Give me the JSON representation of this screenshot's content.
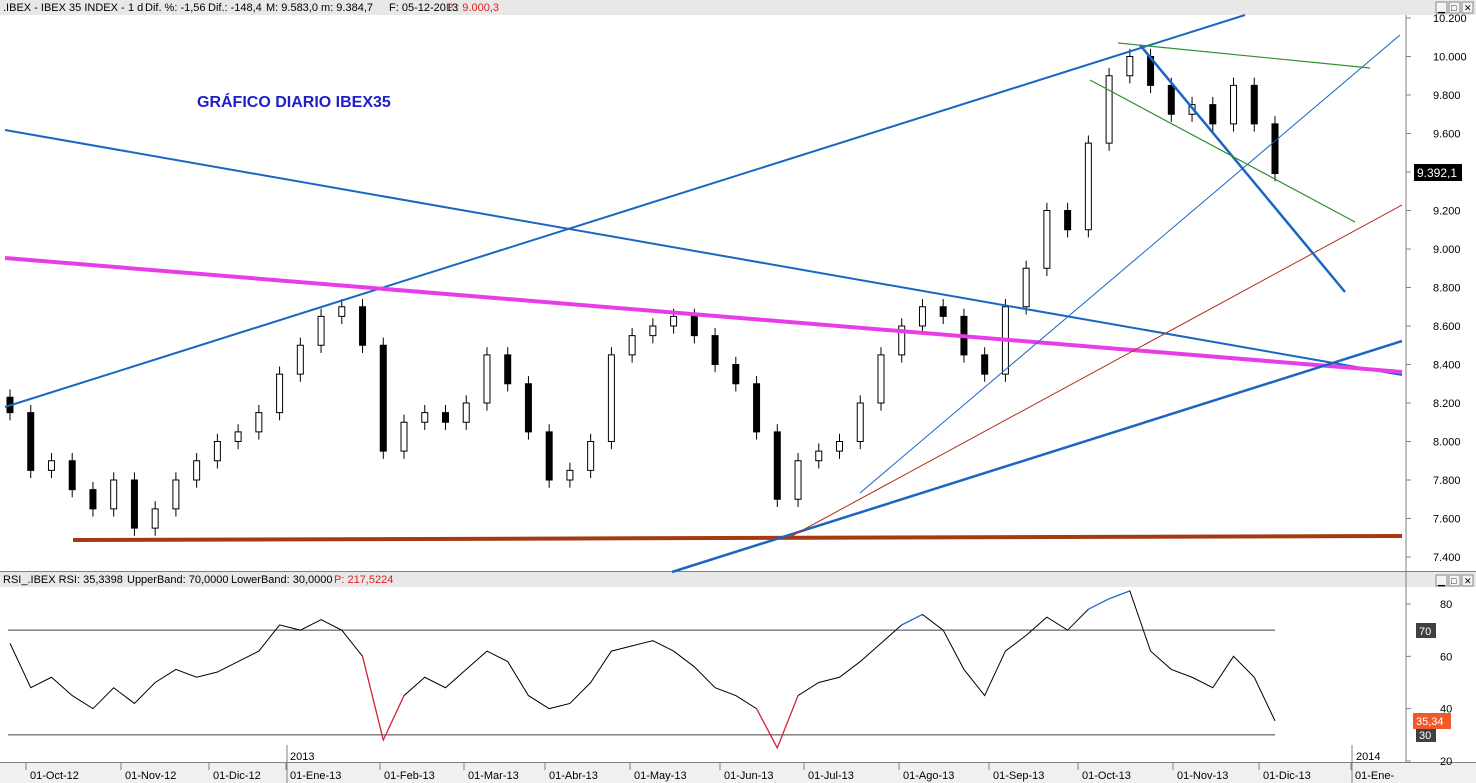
{
  "price_panel": {
    "header": {
      "symbol": ".IBEX - IBEX 35 INDEX -",
      "timeframe": "1 d",
      "change_pct": "Dif. %: -1,56",
      "change_abs": "Dif.: -148,4",
      "high_low": "M: 9.583,0  m: 9.384,7",
      "date": "F: 05-12-2013",
      "cursor_price": "P : 9.000,3"
    },
    "annotation": "GRÁFICO DIARIO IBEX35",
    "last_price_label": "9.392,1",
    "y_ticks": [
      "7.400",
      "7.600",
      "7.800",
      "8.000",
      "8.200",
      "8.400",
      "8.600",
      "8.800",
      "9.000",
      "9.200",
      "9.400",
      "9.600",
      "9.800",
      "10.000",
      "10.200"
    ],
    "y_tick_values": [
      7400,
      7600,
      7800,
      8000,
      8200,
      8400,
      8600,
      8800,
      9000,
      9200,
      9400,
      9600,
      9800,
      10000,
      10200
    ]
  },
  "rsi_panel": {
    "header": {
      "name": "RSI_.IBEX RSI: 35,3398",
      "upper": "UpperBand: 70,0000",
      "lower": "LowerBand: 30,0000",
      "cursor_price": "P: 217,5224"
    },
    "y_ticks": [
      "20",
      "40",
      "60",
      "80"
    ],
    "y_tick_values": [
      20,
      40,
      60,
      80
    ],
    "upper_band_label": "70",
    "lower_band_label": "30",
    "current_value_label": "35,34"
  },
  "x_axis": {
    "labels": [
      "01-Oct-12",
      "01-Nov-12",
      "01-Dic-12",
      "01-Ene-13",
      "01-Feb-13",
      "01-Mar-13",
      "01-Abr-13",
      "01-May-13",
      "01-Jun-13",
      "01-Jul-13",
      "01-Ago-13",
      "01-Sep-13",
      "01-Oct-13",
      "01-Nov-13",
      "01-Dic-13",
      "01-Ene-"
    ],
    "year_labels": [
      "2013",
      "2014"
    ]
  },
  "colors": {
    "trendline_blue": "#1a66c2",
    "resistance_magenta": "#e83ce8",
    "support_brown": "#a53a10",
    "channel_green": "#2f8f2f",
    "thin_red": "#b03020",
    "rsi_line": "#000000",
    "rsi_overbought": "#1f6fd6",
    "rsi_oversold": "#e0203a",
    "last_price_bg": "#000000",
    "rsi_value_bg": "#ee5a2a"
  },
  "chart_data": [
    {
      "type": "candlestick",
      "title": "GRÁFICO DIARIO IBEX35",
      "ylim": [
        7400,
        10200
      ],
      "x": [
        "2012-10-01",
        "2012-10-08",
        "2012-10-15",
        "2012-10-22",
        "2012-10-29",
        "2012-11-05",
        "2012-11-12",
        "2012-11-19",
        "2012-11-26",
        "2012-12-03",
        "2012-12-10",
        "2012-12-17",
        "2012-12-24",
        "2012-12-31",
        "2013-01-07",
        "2013-01-14",
        "2013-01-21",
        "2013-01-28",
        "2013-02-04",
        "2013-02-11",
        "2013-02-18",
        "2013-02-25",
        "2013-03-04",
        "2013-03-11",
        "2013-03-18",
        "2013-03-25",
        "2013-04-01",
        "2013-04-08",
        "2013-04-15",
        "2013-04-22",
        "2013-04-29",
        "2013-05-06",
        "2013-05-13",
        "2013-05-20",
        "2013-05-27",
        "2013-06-03",
        "2013-06-10",
        "2013-06-17",
        "2013-06-24",
        "2013-07-01",
        "2013-07-08",
        "2013-07-15",
        "2013-07-22",
        "2013-07-29",
        "2013-08-05",
        "2013-08-12",
        "2013-08-19",
        "2013-08-26",
        "2013-09-02",
        "2013-09-09",
        "2013-09-16",
        "2013-09-23",
        "2013-09-30",
        "2013-10-07",
        "2013-10-14",
        "2013-10-21",
        "2013-10-28",
        "2013-11-04",
        "2013-11-11",
        "2013-11-18",
        "2013-11-25",
        "2013-12-02"
      ],
      "close": [
        8150,
        7850,
        7900,
        7750,
        7650,
        7800,
        7550,
        7650,
        7800,
        7900,
        8000,
        8050,
        8150,
        8350,
        8500,
        8650,
        8700,
        8500,
        7950,
        8100,
        8150,
        8100,
        8200,
        8450,
        8300,
        8050,
        7800,
        7850,
        8000,
        8450,
        8550,
        8600,
        8650,
        8550,
        8400,
        8300,
        8050,
        7700,
        7900,
        7950,
        8000,
        8200,
        8450,
        8600,
        8700,
        8650,
        8450,
        8350,
        8700,
        8900,
        9200,
        9100,
        9550,
        9900,
        10000,
        9850,
        9700,
        9750,
        9650,
        9850,
        9650,
        9392
      ]
    },
    {
      "type": "line",
      "title": "RSI_.IBEX RSI",
      "ylim": [
        15,
        90
      ],
      "bands": {
        "upper": 70,
        "lower": 30
      },
      "x": [
        "2012-10-01",
        "2012-10-08",
        "2012-10-15",
        "2012-10-22",
        "2012-10-29",
        "2012-11-05",
        "2012-11-12",
        "2012-11-19",
        "2012-11-26",
        "2012-12-03",
        "2012-12-10",
        "2012-12-17",
        "2012-12-24",
        "2012-12-31",
        "2013-01-07",
        "2013-01-14",
        "2013-01-21",
        "2013-01-28",
        "2013-02-04",
        "2013-02-11",
        "2013-02-18",
        "2013-02-25",
        "2013-03-04",
        "2013-03-11",
        "2013-03-18",
        "2013-03-25",
        "2013-04-01",
        "2013-04-08",
        "2013-04-15",
        "2013-04-22",
        "2013-04-29",
        "2013-05-06",
        "2013-05-13",
        "2013-05-20",
        "2013-05-27",
        "2013-06-03",
        "2013-06-10",
        "2013-06-17",
        "2013-06-24",
        "2013-07-01",
        "2013-07-08",
        "2013-07-15",
        "2013-07-22",
        "2013-07-29",
        "2013-08-05",
        "2013-08-12",
        "2013-08-19",
        "2013-08-26",
        "2013-09-02",
        "2013-09-09",
        "2013-09-16",
        "2013-09-23",
        "2013-09-30",
        "2013-10-07",
        "2013-10-14",
        "2013-10-21",
        "2013-10-28",
        "2013-11-04",
        "2013-11-11",
        "2013-11-18",
        "2013-11-25",
        "2013-12-02"
      ],
      "values": [
        65,
        48,
        52,
        45,
        40,
        48,
        42,
        50,
        55,
        52,
        54,
        58,
        62,
        72,
        70,
        74,
        70,
        60,
        28,
        45,
        52,
        48,
        55,
        62,
        58,
        45,
        40,
        42,
        50,
        62,
        64,
        66,
        62,
        56,
        48,
        45,
        40,
        25,
        45,
        50,
        52,
        58,
        65,
        72,
        76,
        70,
        55,
        45,
        62,
        68,
        75,
        70,
        78,
        82,
        85,
        62,
        55,
        52,
        48,
        60,
        52,
        35.34
      ]
    }
  ]
}
